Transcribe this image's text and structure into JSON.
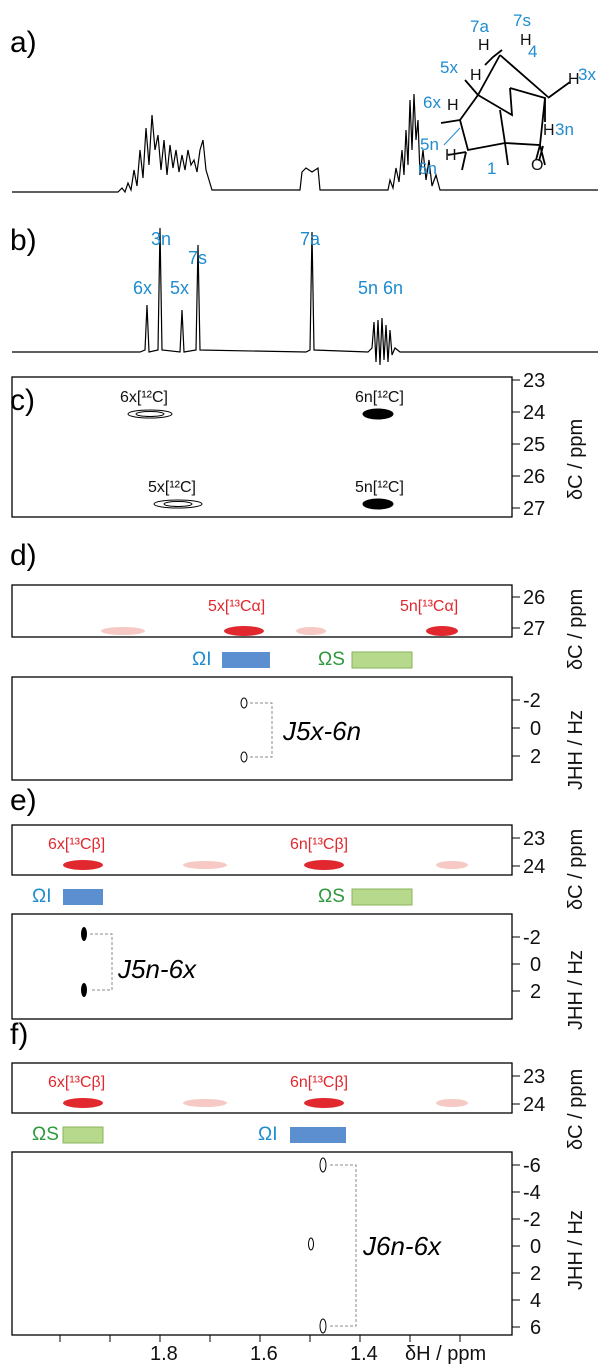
{
  "panels": {
    "a": "a)",
    "b": "b)",
    "c": "c)",
    "d": "d)",
    "e": "e)",
    "f": "f)"
  },
  "molecule": {
    "h7a": "7a",
    "h7s": "7s",
    "h4": "4",
    "h5x": "5x",
    "h3x": "3x",
    "h6x": "6x",
    "h3n": "3n",
    "h5n": "5n",
    "h6n": "6n",
    "h1": "1",
    "H": "H",
    "O": "O"
  },
  "peaks_b": {
    "p3n": "3n",
    "p7s": "7s",
    "p7a": "7a",
    "p6x": "6x",
    "p5x": "5x",
    "p5n6n": "5n 6n"
  },
  "panel_c": {
    "l6x": "6x[¹²C]",
    "l6n": "6n[¹²C]",
    "l5x": "5x[¹²C]",
    "l5n": "5n[¹²C]",
    "yticks": [
      "23",
      "24",
      "25",
      "26",
      "27"
    ],
    "ylabel": "δC / ppm"
  },
  "panel_d": {
    "l5x": "5x[¹³Cα]",
    "l5n": "5n[¹³Cα]",
    "yticks": [
      "26",
      "27"
    ],
    "ylabel": "δC / ppm",
    "omega_i": "ΩI",
    "omega_s": "ΩS",
    "jticks": [
      "-2",
      "0",
      "2"
    ],
    "jlabel": "JHH / Hz",
    "coupling": "J5x-6n"
  },
  "panel_e": {
    "l6x": "6x[¹³Cβ]",
    "l6n": "6n[¹³Cβ]",
    "yticks": [
      "23",
      "24"
    ],
    "ylabel": "δC / ppm",
    "omega_i": "ΩI",
    "omega_s": "ΩS",
    "jticks": [
      "-2",
      "0",
      "2"
    ],
    "jlabel": "JHH / Hz",
    "coupling": "J5n-6x"
  },
  "panel_f": {
    "l6x": "6x[¹³Cβ]",
    "l6n": "6n[¹³Cβ]",
    "yticks": [
      "23",
      "24"
    ],
    "ylabel": "δC / ppm",
    "omega_s": "ΩS",
    "omega_i": "ΩI",
    "jticks": [
      "-6",
      "-4",
      "-2",
      "0",
      "2",
      "4",
      "6"
    ],
    "jlabel": "JHH / Hz",
    "coupling": "J6n-6x"
  },
  "xaxis": {
    "ticks": [
      "1.8",
      "1.6",
      "1.4"
    ],
    "label": "δH / ppm"
  },
  "colors": {
    "blue": "#1f8ccf",
    "red": "#e0282e",
    "green": "#2e9a3c",
    "omega_blue_box": "#5b8fd0",
    "omega_green_box": "#b6d98c"
  }
}
